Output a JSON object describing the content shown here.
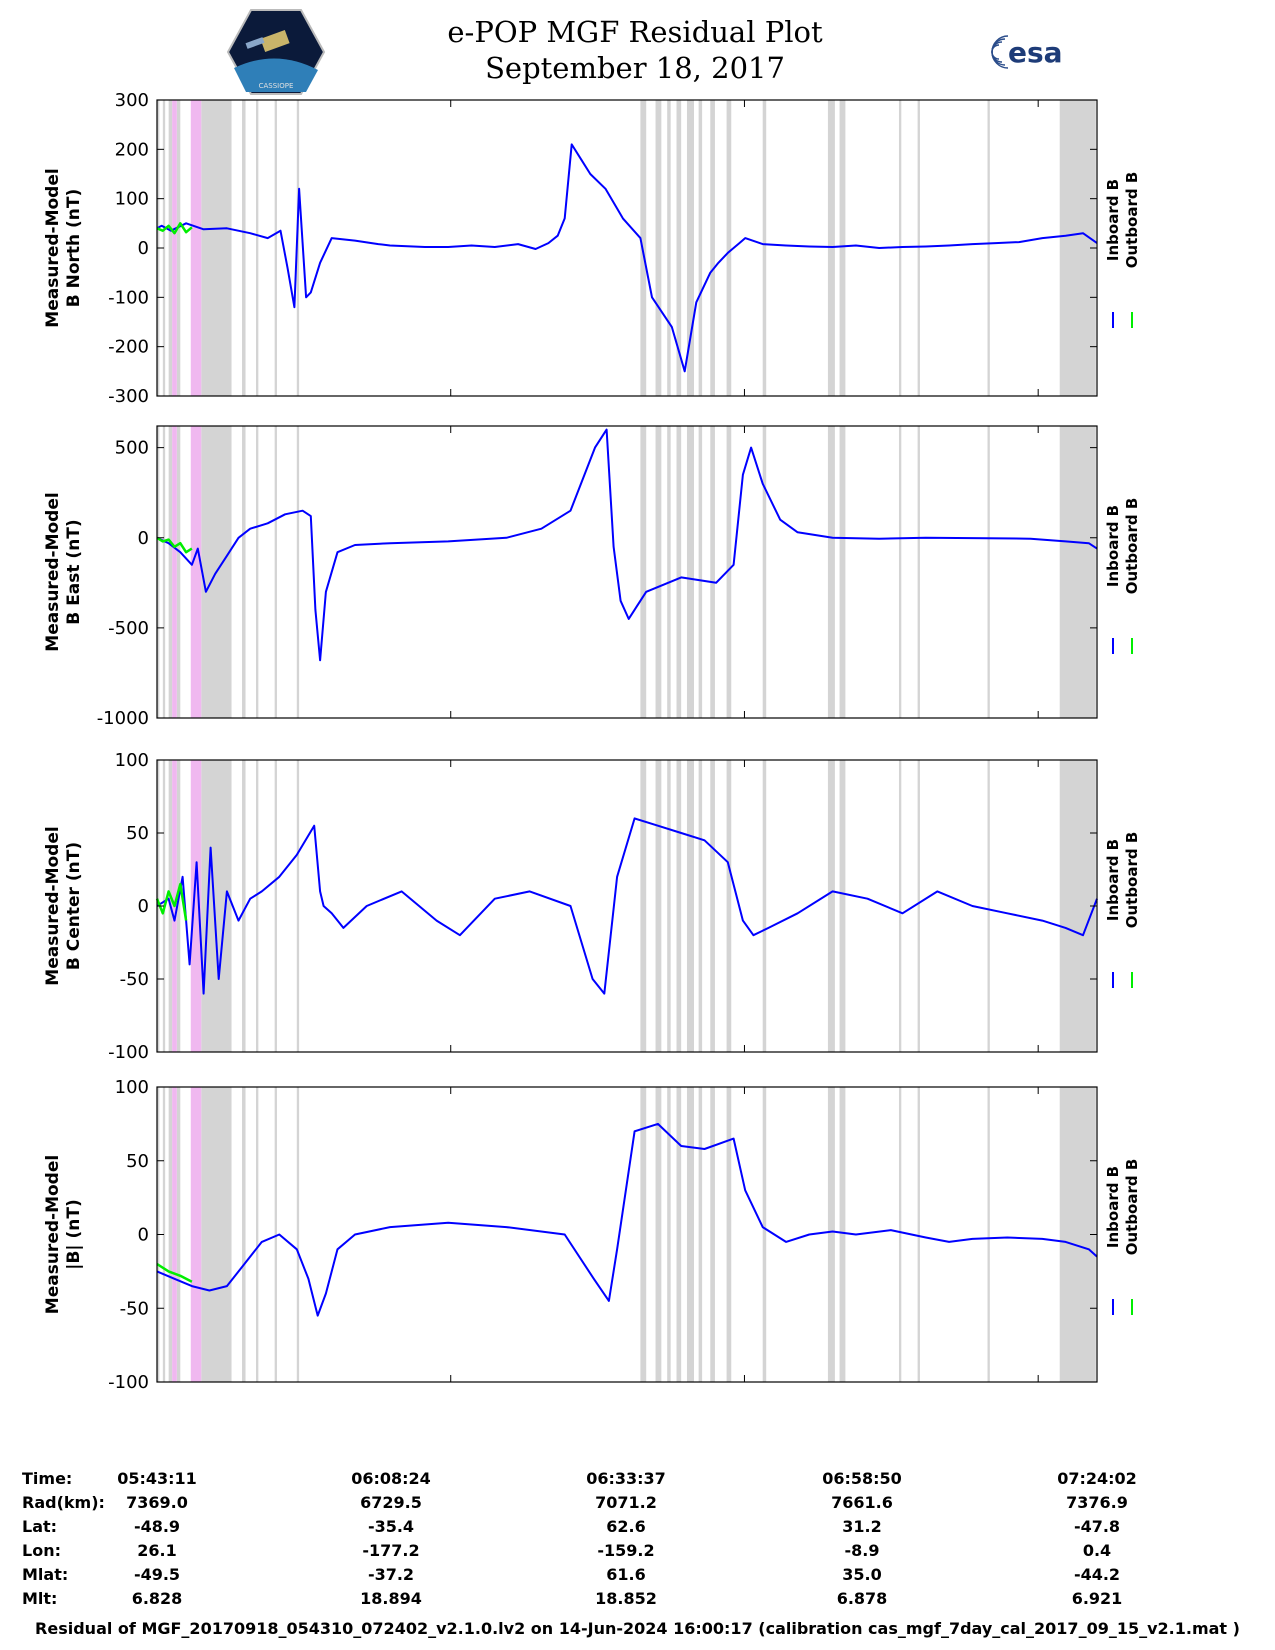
{
  "header": {
    "title_line1": "e-POP MGF Residual Plot",
    "title_line2": "September 18, 2017",
    "logo_left": "CASSIOPE",
    "logo_right": "esa"
  },
  "legend": {
    "inboard": "Inboard B",
    "outboard": "Outboard B",
    "inboard_color": "#0000ff",
    "outboard_color": "#00ee00"
  },
  "colors": {
    "mask_gray": "#d4d4d4",
    "mask_pink": "#f0b8f0"
  },
  "chart_data": [
    {
      "type": "line",
      "ylabel_line1": "Measured-Model",
      "ylabel_line2": "B North (nT)",
      "ylim": [
        -300,
        300
      ],
      "yticks": [
        300,
        200,
        100,
        0,
        -100,
        -200,
        -300
      ],
      "series": [
        {
          "name": "Inboard B",
          "color": "#0000ff",
          "x": [
            0,
            0.4,
            1.2,
            2.5,
            4,
            6,
            8,
            9.5,
            10.6,
            11.2,
            11.8,
            12.2,
            12.8,
            13.2,
            14,
            15,
            17,
            19,
            20,
            23,
            25,
            27,
            29,
            31,
            32.5,
            33.6,
            34.4,
            35,
            35.6,
            36.4,
            37.2,
            38.5,
            40,
            41.5,
            42.5,
            44.2,
            45.3,
            46.3,
            47.5,
            48.2,
            49,
            50,
            50.5,
            52,
            54,
            56,
            58,
            60,
            62,
            64,
            66,
            68,
            70,
            72,
            74,
            76,
            78,
            79.5,
            80.7
          ],
          "y": [
            40,
            45,
            35,
            50,
            38,
            40,
            30,
            20,
            35,
            -40,
            -120,
            120,
            -100,
            -90,
            -30,
            20,
            15,
            8,
            5,
            2,
            2,
            5,
            2,
            8,
            -2,
            10,
            25,
            60,
            210,
            180,
            150,
            120,
            60,
            20,
            -100,
            -160,
            -250,
            -110,
            -50,
            -30,
            -10,
            10,
            20,
            8,
            5,
            3,
            2,
            5,
            0,
            2,
            3,
            5,
            8,
            10,
            12,
            20,
            25,
            30,
            10
          ]
        },
        {
          "name": "Outboard B",
          "color": "#00ee00",
          "x": [
            0,
            0.5,
            1,
            1.5,
            2,
            2.5,
            3
          ],
          "y": [
            40,
            35,
            45,
            30,
            50,
            32,
            42
          ]
        }
      ]
    },
    {
      "type": "line",
      "ylabel_line1": "Measured-Model",
      "ylabel_line2": "B East (nT)",
      "ylim": [
        -1000,
        620
      ],
      "yticks": [
        500,
        0,
        -500,
        -1000
      ],
      "series": [
        {
          "name": "Inboard B",
          "color": "#0000ff",
          "x": [
            0,
            1,
            2,
            3,
            3.5,
            4.2,
            5,
            6,
            7,
            8,
            9.5,
            11,
            12.5,
            13.2,
            13.6,
            14,
            14.5,
            15.5,
            17,
            20,
            25,
            30,
            33,
            35.5,
            37.6,
            38.6,
            39.2,
            39.8,
            40.5,
            42,
            45,
            48,
            49.5,
            50.3,
            51,
            52,
            53.5,
            55,
            58,
            62,
            66,
            70,
            75,
            78,
            80,
            80.7
          ],
          "y": [
            0,
            -30,
            -80,
            -150,
            -60,
            -300,
            -200,
            -100,
            0,
            50,
            80,
            130,
            150,
            120,
            -400,
            -680,
            -300,
            -80,
            -40,
            -30,
            -20,
            0,
            50,
            150,
            500,
            600,
            -50,
            -350,
            -450,
            -300,
            -220,
            -250,
            -150,
            350,
            500,
            300,
            100,
            30,
            0,
            -5,
            0,
            -2,
            -5,
            -20,
            -30,
            -60
          ]
        },
        {
          "name": "Outboard B",
          "color": "#00ee00",
          "x": [
            0,
            0.5,
            1,
            1.5,
            2,
            2.5,
            3
          ],
          "y": [
            0,
            -20,
            -10,
            -50,
            -30,
            -80,
            -60
          ]
        }
      ]
    },
    {
      "type": "line",
      "ylabel_line1": "Measured-Model",
      "ylabel_line2": "B Center (nT)",
      "ylim": [
        -100,
        100
      ],
      "yticks": [
        100,
        50,
        0,
        -50,
        -100
      ],
      "series": [
        {
          "name": "Inboard B",
          "color": "#0000ff",
          "x": [
            0,
            1,
            1.5,
            2.2,
            2.8,
            3.4,
            4,
            4.6,
            5.3,
            6,
            7,
            8,
            9,
            10.5,
            12,
            13.5,
            14,
            14.3,
            15,
            16,
            18,
            21,
            24,
            26,
            29,
            32,
            35.5,
            37.4,
            38.4,
            39.5,
            41,
            43,
            45,
            47,
            49,
            50.3,
            51.2,
            52.5,
            55,
            58,
            61,
            64,
            67,
            70,
            73,
            76,
            78,
            79.5,
            80.7
          ],
          "y": [
            0,
            5,
            -10,
            20,
            -40,
            30,
            -60,
            40,
            -50,
            10,
            -10,
            5,
            10,
            20,
            35,
            55,
            10,
            0,
            -5,
            -15,
            0,
            10,
            -10,
            -20,
            5,
            10,
            0,
            -50,
            -60,
            20,
            60,
            55,
            50,
            45,
            30,
            -10,
            -20,
            -15,
            -5,
            10,
            5,
            -5,
            10,
            0,
            -5,
            -10,
            -15,
            -20,
            5
          ]
        },
        {
          "name": "Outboard B",
          "color": "#00ee00",
          "x": [
            0,
            0.5,
            1,
            1.5,
            2,
            2.5
          ],
          "y": [
            5,
            -5,
            10,
            0,
            15,
            -10
          ]
        }
      ]
    },
    {
      "type": "line",
      "ylabel_line1": "Measured-Model",
      "ylabel_line2": "|B| (nT)",
      "ylim": [
        -100,
        100
      ],
      "yticks": [
        100,
        50,
        0,
        -50,
        -100
      ],
      "series": [
        {
          "name": "Inboard B",
          "color": "#0000ff",
          "x": [
            0,
            1.5,
            3,
            4.5,
            6,
            7.5,
            9,
            10.5,
            12,
            13,
            13.8,
            14.5,
            15.5,
            17,
            20,
            25,
            30,
            35,
            37.5,
            38.8,
            39.5,
            41,
            43,
            45,
            47,
            49.5,
            50.5,
            52,
            54,
            56,
            58,
            60,
            63,
            66,
            68,
            70,
            73,
            76,
            78,
            80,
            80.7
          ],
          "y": [
            -25,
            -30,
            -35,
            -38,
            -35,
            -20,
            -5,
            0,
            -10,
            -30,
            -55,
            -40,
            -10,
            0,
            5,
            8,
            5,
            0,
            -30,
            -45,
            -10,
            70,
            75,
            60,
            58,
            65,
            30,
            5,
            -5,
            0,
            2,
            0,
            3,
            -2,
            -5,
            -3,
            -2,
            -3,
            -5,
            -10,
            -15
          ]
        },
        {
          "name": "Outboard B",
          "color": "#00ee00",
          "x": [
            0,
            1,
            2,
            3
          ],
          "y": [
            -20,
            -25,
            -28,
            -32
          ]
        }
      ]
    }
  ],
  "ephemeris": {
    "row_labels": [
      "Time:",
      "Rad(km):",
      "Lat:",
      "Lon:",
      "Mlat:",
      "Mlt:"
    ],
    "columns": [
      [
        "05:43:11",
        "7369.0",
        "-48.9",
        "26.1",
        "-49.5",
        "6.828"
      ],
      [
        "06:08:24",
        "6729.5",
        "-35.4",
        "-177.2",
        "-37.2",
        "18.894"
      ],
      [
        "06:33:37",
        "7071.2",
        "62.6",
        "-159.2",
        "61.6",
        "18.852"
      ],
      [
        "06:58:50",
        "7661.6",
        "31.2",
        "-8.9",
        "35.0",
        "6.878"
      ],
      [
        "07:24:02",
        "7376.9",
        "-47.8",
        "0.4",
        "-44.2",
        "6.921"
      ]
    ]
  },
  "footer": "Residual of MGF_20170918_054310_072402_v2.1.0.lv2 on 14-Jun-2024 16:00:17 (calibration cas_mgf_7day_cal_2017_09_15_v2.1.mat )"
}
